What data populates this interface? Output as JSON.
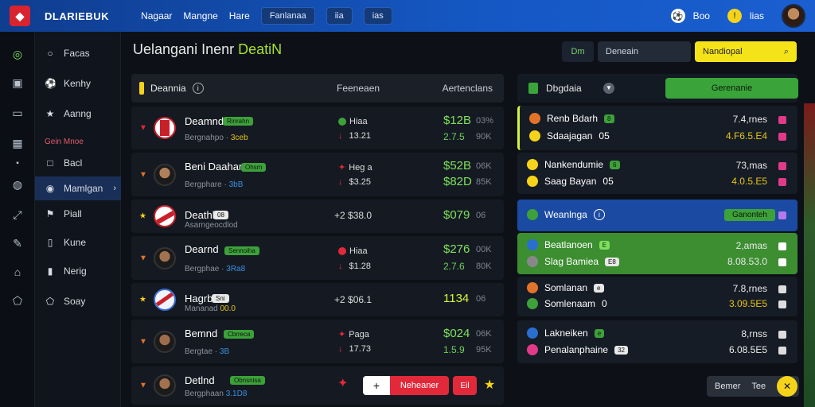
{
  "topbar": {
    "brand": "DLARIEBUK",
    "nav": [
      "Nagaar",
      "Mangne",
      "Hare"
    ],
    "pills": [
      "Fanlanaa",
      "iia",
      "ias"
    ],
    "right_1": "Boo",
    "right_2": "lias"
  },
  "sidenav": {
    "items": [
      "Facas",
      "Kenhy",
      "Aanng",
      "Bacl",
      "Mamlgan",
      "Piall",
      "Kune",
      "Nerig",
      "Soay"
    ],
    "section": "Gein Mnoe"
  },
  "main": {
    "title_prefix": "Uelangani Inenr",
    "title_highlight": "DeatiN",
    "toolbar": {
      "small_label": "Dm",
      "search_placeholder": "Deneain",
      "yellow_label": "Nandiopal"
    }
  },
  "left_table": {
    "header": {
      "col1": "Deannia",
      "col2": "Feeneaen",
      "col3": "Aertenclans"
    },
    "rows": [
      {
        "name": "Deamnd",
        "tag": "Rinrahn",
        "sub_prefix": "Bergnahpo ·",
        "sub_value": "3ceb",
        "mid_top": "Hiaa",
        "mid_bottom": "13.21",
        "big": "$12B",
        "big_pct": "03%",
        "small": "2.7.5",
        "small_pct": "90K"
      },
      {
        "name": "Beni Daahan",
        "tag": "Ohsm",
        "sub_prefix": "Bergphare ·",
        "sub_value": "3bB",
        "mid_top": "Heg a",
        "mid_bottom": "$3.25",
        "big": "$52B",
        "big_pct": "06K",
        "small": "$82D",
        "small_pct": "85K"
      },
      {
        "name": "Deathl",
        "tag": "08",
        "sub_prefix": "Asarngeocdlod",
        "sub_value": "",
        "mid_top": "+2 $38.0",
        "mid_bottom": "",
        "big": "$079",
        "big_pct": "06",
        "small": "",
        "small_pct": ""
      },
      {
        "name": "Dearnd",
        "tag": "Sennoiha",
        "sub_prefix": "Bergphae ·",
        "sub_value": "3Ra8",
        "mid_top": "Hiaa",
        "mid_bottom": "$1.28",
        "big": "$276",
        "big_pct": "00K",
        "small": "2.7.6",
        "small_pct": "80K"
      },
      {
        "name": "Hagrb",
        "tag": "Sni",
        "sub_prefix": "Mananad",
        "sub_value": "00.0",
        "mid_top": "+2 $06.1",
        "mid_bottom": "",
        "big": "1134",
        "big_pct": "06",
        "small": "",
        "small_pct": ""
      },
      {
        "name": "Bemnd",
        "tag": "Cbrreca",
        "sub_prefix": "Bergtae ·",
        "sub_value": "3B",
        "mid_top": "Paga",
        "mid_bottom": "17.73",
        "big": "$024",
        "big_pct": "06K",
        "small": "1.5.9",
        "small_pct": "95K"
      },
      {
        "name": "Detlnd",
        "tag": "Obnsnisa",
        "sub_prefix": "Bergphaan",
        "sub_value": "3.1D8",
        "mid_top": "",
        "mid_bottom": "",
        "big": "",
        "big_pct": "",
        "small": "",
        "small_pct": ""
      }
    ]
  },
  "right_panel": {
    "header": {
      "title": "Dbgdaia",
      "button": "Gerenanie"
    },
    "groups": [
      {
        "l1": "Renb Bdarh",
        "l1_tag": "8",
        "l2": "Sdaajagan",
        "l2_tag": "05",
        "v1": "7.4,rnes",
        "v2": "4.F6.5.E4"
      },
      {
        "l1": "Nankendumie",
        "l1_tag": "6",
        "l2": "Saag Bayan",
        "l2_tag": "05",
        "v1": "73,mas",
        "v2": "4.0.5.E5"
      },
      {
        "l1": "Weanlnga",
        "l1_tag": "",
        "l2": "",
        "l2_tag": "",
        "v1": "",
        "v2": "",
        "button": "Ganonteh"
      },
      {
        "l1": "Beatlanoen",
        "l1_tag": "E",
        "l2": "Slag Bamiea",
        "l2_tag": "E8",
        "v1": "2,amas",
        "v2": "8.08.53.0"
      },
      {
        "l1": "Somlanan",
        "l1_tag": "e",
        "l2": "Somlenaam",
        "l2_tag": "0",
        "v1": "7.8,rnes",
        "v2": "3.09.5E5"
      },
      {
        "l1": "Lakneiken",
        "l1_tag": "e",
        "l2": "Penalanphaine",
        "l2_tag": "32",
        "v1": "8,rnss",
        "v2": "6.08.5E5"
      }
    ]
  },
  "bottom": {
    "red_label": "Neheaner",
    "red2_label": "Eil",
    "pill_a": "Bemer",
    "pill_b": "Tee"
  }
}
